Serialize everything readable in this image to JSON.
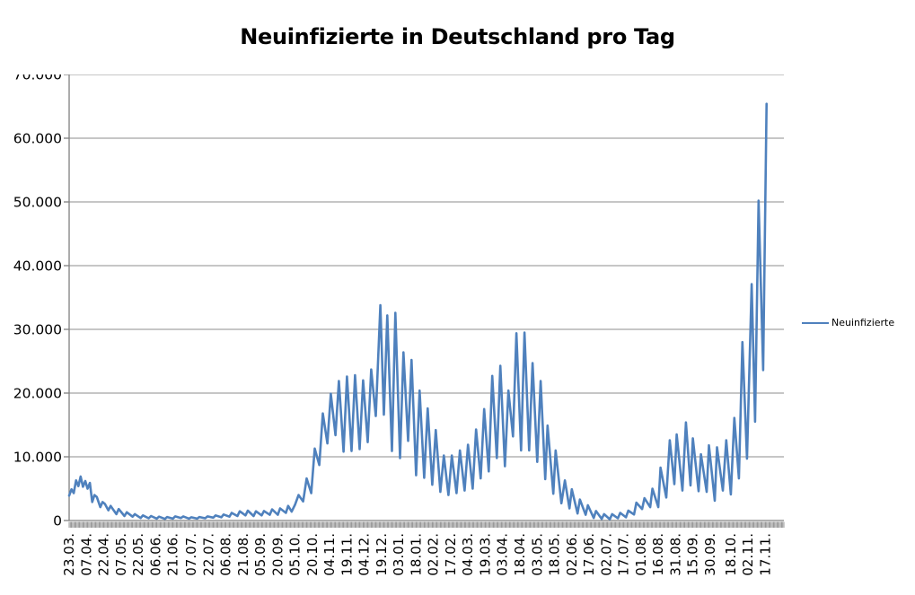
{
  "title": "Neuinfizierte in Deutschland pro Tag",
  "legend": {
    "label": "Neuinfizierte"
  },
  "colors": {
    "series": "#4F81BD",
    "gridline": "#8C8C8C",
    "axis": "#808080",
    "text": "#000000",
    "background": "#FFFFFF"
  },
  "chart_data": {
    "type": "line",
    "title": "Neuinfizierte in Deutschland pro Tag",
    "xlabel": "",
    "ylabel": "",
    "ylim": [
      0,
      70000
    ],
    "x_domain_days": [
      0,
      620
    ],
    "grid": "horizontal",
    "legend_position": "right",
    "y_ticks": [
      {
        "value": 0,
        "label": "0"
      },
      {
        "value": 10000,
        "label": "10.000"
      },
      {
        "value": 20000,
        "label": "20.000"
      },
      {
        "value": 30000,
        "label": "30.000"
      },
      {
        "value": 40000,
        "label": "40.000"
      },
      {
        "value": 50000,
        "label": "50.000"
      },
      {
        "value": 60000,
        "label": "60.000"
      },
      {
        "value": 70000,
        "label": "70.000"
      }
    ],
    "x_ticks": [
      {
        "day": 0,
        "label": "23.03."
      },
      {
        "day": 15,
        "label": "07.04."
      },
      {
        "day": 30,
        "label": "22.04."
      },
      {
        "day": 45,
        "label": "07.05."
      },
      {
        "day": 60,
        "label": "22.05."
      },
      {
        "day": 75,
        "label": "06.06."
      },
      {
        "day": 90,
        "label": "21.06."
      },
      {
        "day": 106,
        "label": "07.07."
      },
      {
        "day": 121,
        "label": "22.07."
      },
      {
        "day": 136,
        "label": "06.08."
      },
      {
        "day": 151,
        "label": "21.08."
      },
      {
        "day": 166,
        "label": "05.09."
      },
      {
        "day": 181,
        "label": "20.09."
      },
      {
        "day": 196,
        "label": "05.10."
      },
      {
        "day": 211,
        "label": "20.10."
      },
      {
        "day": 226,
        "label": "04.11."
      },
      {
        "day": 241,
        "label": "19.11."
      },
      {
        "day": 256,
        "label": "04.12."
      },
      {
        "day": 271,
        "label": "19.12."
      },
      {
        "day": 286,
        "label": "03.01."
      },
      {
        "day": 301,
        "label": "18.01."
      },
      {
        "day": 316,
        "label": "02.02."
      },
      {
        "day": 331,
        "label": "17.02."
      },
      {
        "day": 346,
        "label": "04.03."
      },
      {
        "day": 361,
        "label": "19.03."
      },
      {
        "day": 376,
        "label": "03.04."
      },
      {
        "day": 391,
        "label": "18.04."
      },
      {
        "day": 406,
        "label": "03.05."
      },
      {
        "day": 421,
        "label": "18.05."
      },
      {
        "day": 436,
        "label": "02.06."
      },
      {
        "day": 451,
        "label": "17.06."
      },
      {
        "day": 466,
        "label": "02.07."
      },
      {
        "day": 481,
        "label": "17.07."
      },
      {
        "day": 496,
        "label": "01.08."
      },
      {
        "day": 511,
        "label": "16.08."
      },
      {
        "day": 526,
        "label": "31.08."
      },
      {
        "day": 541,
        "label": "15.09."
      },
      {
        "day": 556,
        "label": "30.09."
      },
      {
        "day": 574,
        "label": "18.10."
      },
      {
        "day": 589,
        "label": "02.11."
      },
      {
        "day": 604,
        "label": "17.11."
      }
    ],
    "series": [
      {
        "name": "Neuinfizierte",
        "color": "#4F81BD",
        "points": [
          [
            0,
            3900
          ],
          [
            2,
            4900
          ],
          [
            4,
            4300
          ],
          [
            6,
            6300
          ],
          [
            8,
            5400
          ],
          [
            10,
            6900
          ],
          [
            12,
            5300
          ],
          [
            14,
            6200
          ],
          [
            16,
            5000
          ],
          [
            18,
            5900
          ],
          [
            20,
            2900
          ],
          [
            22,
            4000
          ],
          [
            24,
            3700
          ],
          [
            27,
            2100
          ],
          [
            29,
            2900
          ],
          [
            31,
            2600
          ],
          [
            34,
            1600
          ],
          [
            36,
            2300
          ],
          [
            41,
            1000
          ],
          [
            43,
            1800
          ],
          [
            48,
            700
          ],
          [
            50,
            1300
          ],
          [
            55,
            600
          ],
          [
            57,
            1000
          ],
          [
            62,
            400
          ],
          [
            64,
            800
          ],
          [
            69,
            350
          ],
          [
            71,
            700
          ],
          [
            76,
            300
          ],
          [
            78,
            600
          ],
          [
            83,
            250
          ],
          [
            85,
            550
          ],
          [
            90,
            300
          ],
          [
            92,
            650
          ],
          [
            97,
            400
          ],
          [
            99,
            650
          ],
          [
            104,
            300
          ],
          [
            106,
            500
          ],
          [
            111,
            300
          ],
          [
            113,
            550
          ],
          [
            118,
            350
          ],
          [
            120,
            650
          ],
          [
            125,
            450
          ],
          [
            127,
            800
          ],
          [
            132,
            500
          ],
          [
            134,
            950
          ],
          [
            139,
            600
          ],
          [
            141,
            1200
          ],
          [
            146,
            700
          ],
          [
            148,
            1450
          ],
          [
            153,
            800
          ],
          [
            155,
            1550
          ],
          [
            160,
            700
          ],
          [
            162,
            1450
          ],
          [
            167,
            800
          ],
          [
            169,
            1500
          ],
          [
            174,
            900
          ],
          [
            176,
            1750
          ],
          [
            181,
            900
          ],
          [
            183,
            1900
          ],
          [
            188,
            1200
          ],
          [
            190,
            2300
          ],
          [
            193,
            1400
          ],
          [
            196,
            2500
          ],
          [
            199,
            4000
          ],
          [
            203,
            3000
          ],
          [
            206,
            6600
          ],
          [
            210,
            4300
          ],
          [
            213,
            11300
          ],
          [
            217,
            8700
          ],
          [
            220,
            16800
          ],
          [
            224,
            12100
          ],
          [
            227,
            19900
          ],
          [
            231,
            13400
          ],
          [
            234,
            21900
          ],
          [
            238,
            10800
          ],
          [
            241,
            22600
          ],
          [
            245,
            10900
          ],
          [
            248,
            22800
          ],
          [
            252,
            11200
          ],
          [
            255,
            22000
          ],
          [
            259,
            12300
          ],
          [
            262,
            23700
          ],
          [
            266,
            16400
          ],
          [
            270,
            33800
          ],
          [
            273,
            16600
          ],
          [
            276,
            32200
          ],
          [
            280,
            10900
          ],
          [
            283,
            32600
          ],
          [
            287,
            9800
          ],
          [
            290,
            26400
          ],
          [
            294,
            12500
          ],
          [
            297,
            25200
          ],
          [
            301,
            7100
          ],
          [
            304,
            20400
          ],
          [
            308,
            6700
          ],
          [
            311,
            17600
          ],
          [
            315,
            5600
          ],
          [
            318,
            14200
          ],
          [
            322,
            4500
          ],
          [
            325,
            10200
          ],
          [
            329,
            4000
          ],
          [
            332,
            10200
          ],
          [
            336,
            4300
          ],
          [
            339,
            11000
          ],
          [
            343,
            4700
          ],
          [
            346,
            11900
          ],
          [
            350,
            5000
          ],
          [
            353,
            14300
          ],
          [
            357,
            6600
          ],
          [
            360,
            17500
          ],
          [
            364,
            7700
          ],
          [
            367,
            22700
          ],
          [
            371,
            9800
          ],
          [
            374,
            24300
          ],
          [
            378,
            8500
          ],
          [
            381,
            20400
          ],
          [
            385,
            13200
          ],
          [
            388,
            29400
          ],
          [
            392,
            11000
          ],
          [
            395,
            29500
          ],
          [
            399,
            11000
          ],
          [
            402,
            24700
          ],
          [
            406,
            9200
          ],
          [
            409,
            21900
          ],
          [
            413,
            6500
          ],
          [
            415,
            14900
          ],
          [
            420,
            4200
          ],
          [
            422,
            11000
          ],
          [
            427,
            2700
          ],
          [
            430,
            6300
          ],
          [
            434,
            1900
          ],
          [
            436,
            4900
          ],
          [
            441,
            1100
          ],
          [
            443,
            3300
          ],
          [
            448,
            900
          ],
          [
            450,
            2400
          ],
          [
            455,
            400
          ],
          [
            457,
            1500
          ],
          [
            462,
            250
          ],
          [
            464,
            1000
          ],
          [
            469,
            200
          ],
          [
            471,
            1000
          ],
          [
            476,
            350
          ],
          [
            478,
            1200
          ],
          [
            483,
            500
          ],
          [
            485,
            1550
          ],
          [
            490,
            950
          ],
          [
            492,
            2800
          ],
          [
            497,
            1800
          ],
          [
            499,
            3500
          ],
          [
            504,
            2100
          ],
          [
            506,
            5000
          ],
          [
            511,
            2100
          ],
          [
            513,
            8300
          ],
          [
            518,
            3600
          ],
          [
            521,
            12600
          ],
          [
            525,
            5700
          ],
          [
            527,
            13500
          ],
          [
            532,
            4700
          ],
          [
            535,
            15400
          ],
          [
            539,
            5500
          ],
          [
            541,
            12900
          ],
          [
            546,
            4600
          ],
          [
            548,
            10400
          ],
          [
            553,
            4500
          ],
          [
            555,
            11800
          ],
          [
            560,
            3100
          ],
          [
            562,
            11500
          ],
          [
            567,
            4700
          ],
          [
            570,
            12600
          ],
          [
            574,
            4100
          ],
          [
            577,
            16100
          ],
          [
            581,
            6600
          ],
          [
            584,
            28000
          ],
          [
            588,
            9700
          ],
          [
            592,
            37100
          ],
          [
            595,
            15500
          ],
          [
            598,
            50200
          ],
          [
            602,
            23600
          ],
          [
            605,
            65400
          ]
        ]
      }
    ]
  }
}
